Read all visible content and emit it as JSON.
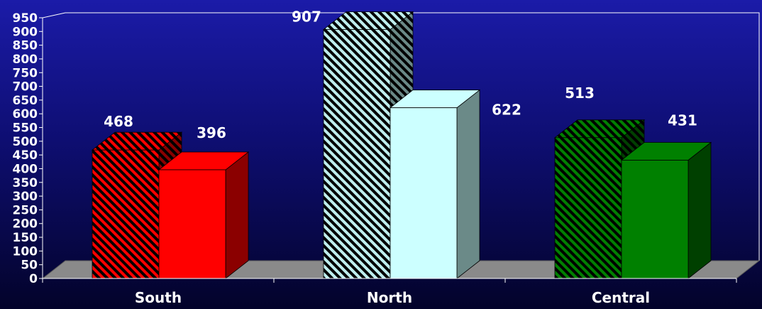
{
  "chart_data": {
    "type": "bar",
    "categories": [
      "South",
      "North",
      "Central"
    ],
    "series": [
      {
        "values": [
          468,
          907,
          513
        ]
      },
      {
        "values": [
          396,
          622,
          431
        ]
      }
    ],
    "data_labels": [
      [
        "468",
        "907",
        "513"
      ],
      [
        "396",
        "622",
        "431"
      ]
    ],
    "y_ticks": [
      "0",
      "50",
      "100",
      "150",
      "200",
      "250",
      "300",
      "350",
      "400",
      "450",
      "500",
      "550",
      "600",
      "650",
      "700",
      "750",
      "800",
      "850",
      "900",
      "950"
    ],
    "ylim": [
      0,
      950
    ],
    "grid": false,
    "legend": "none",
    "colors": {
      "south": [
        "#ff0000",
        "#8b0000"
      ],
      "north": [
        "#ccffff",
        "#6b8a88"
      ],
      "central": [
        "#008000",
        "#004000"
      ],
      "floor": "#8a8a8a",
      "axes": "#ffffff"
    }
  }
}
